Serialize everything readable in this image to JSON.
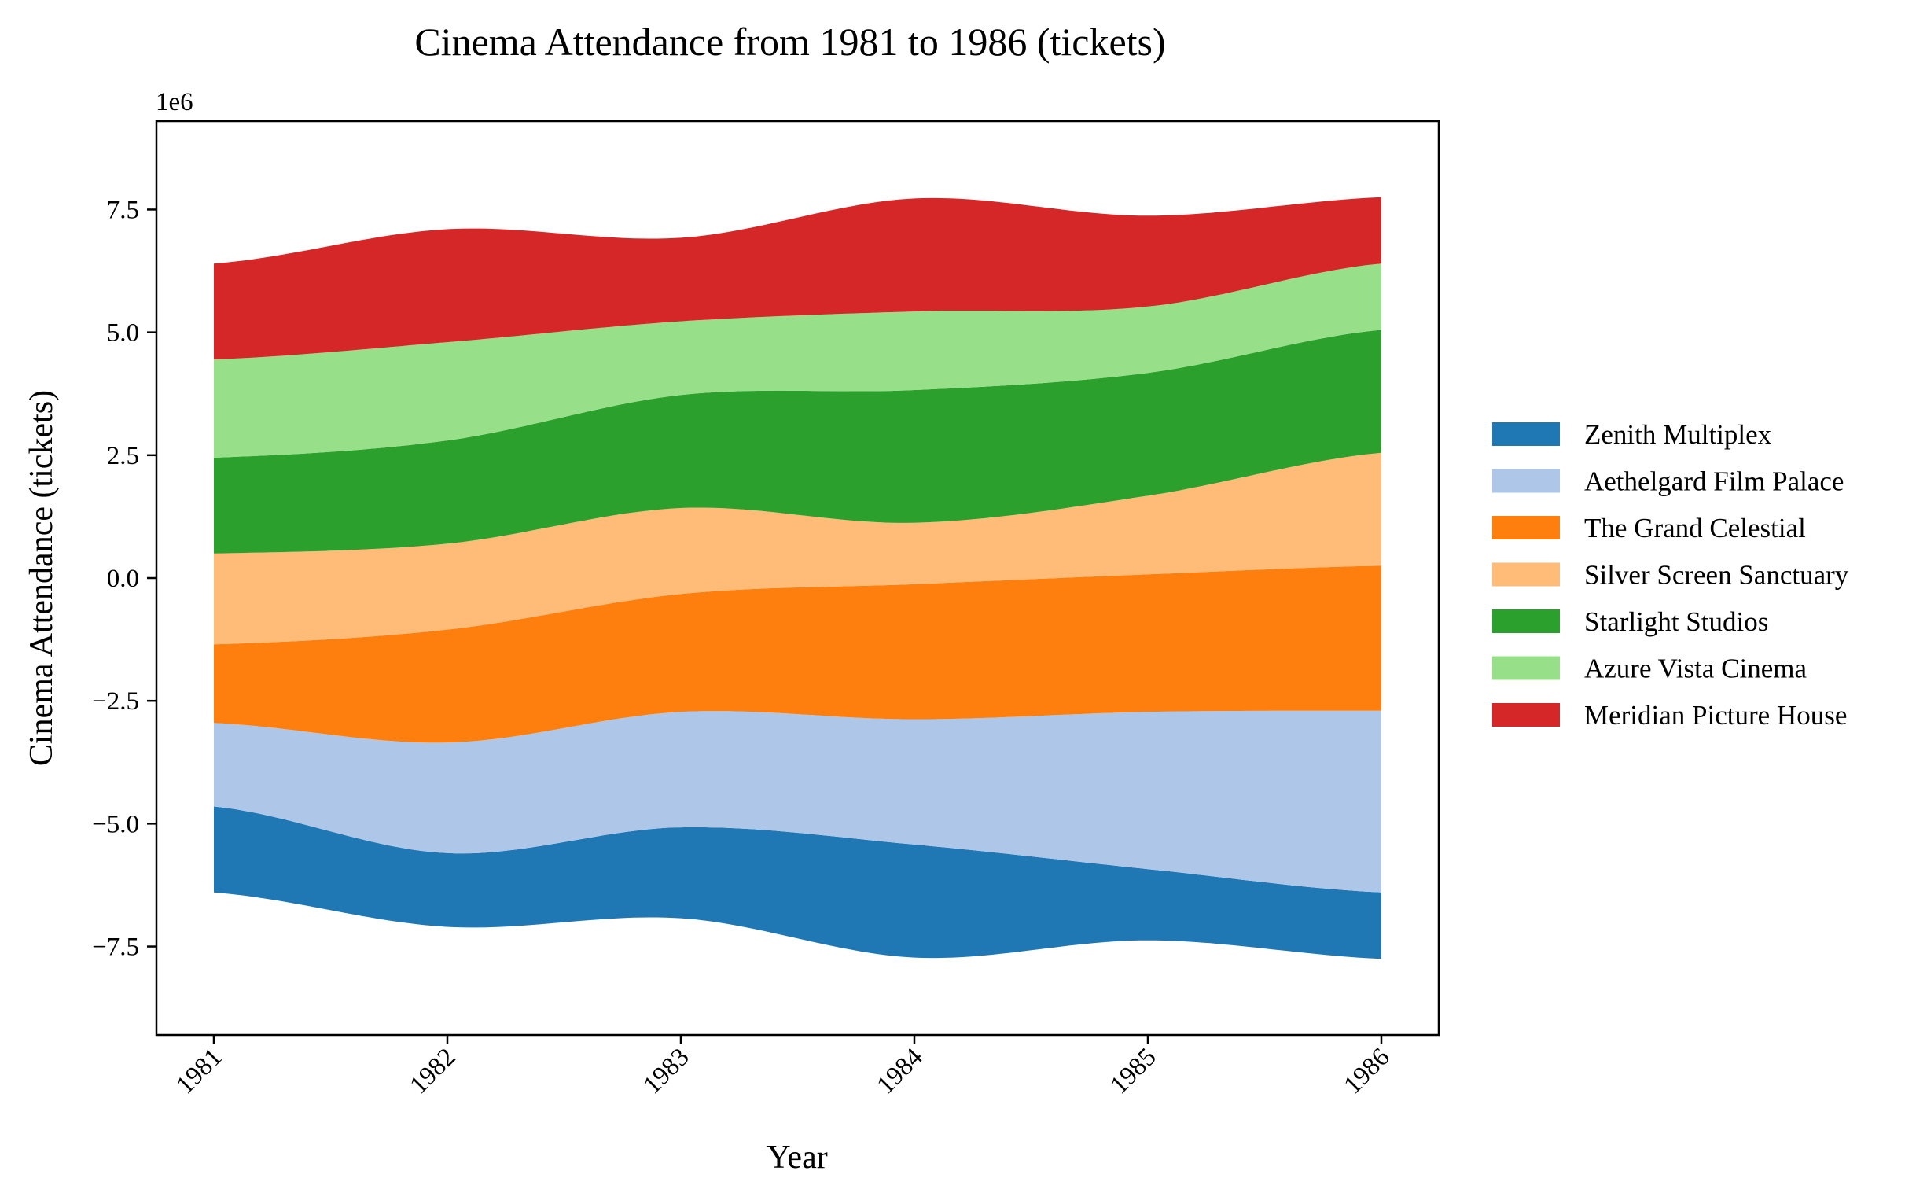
{
  "chart_data": {
    "type": "area",
    "baseline": "symmetric",
    "title": "Cinema Attendance from 1981 to 1986 (tickets)",
    "xlabel": "Year",
    "ylabel": "Cinema Attendance (tickets)",
    "y_offset_label": "1e6",
    "x": [
      "1981",
      "1982",
      "1983",
      "1984",
      "1985",
      "1986"
    ],
    "ylim": [
      -9300000,
      9300000
    ],
    "y_ticks": [
      -7500000,
      -5000000,
      -2500000,
      0,
      2500000,
      5000000,
      7500000
    ],
    "y_tick_labels": [
      "−7.5",
      "−5.0",
      "−2.5",
      "0.0",
      "2.5",
      "5.0",
      "7.5"
    ],
    "grid": false,
    "legend_position": "right",
    "series": [
      {
        "name": "Zenith Multiplex",
        "color": "#1f77b4",
        "values": [
          1750000,
          1500000,
          1850000,
          2300000,
          1450000,
          1350000
        ]
      },
      {
        "name": "Aethelgard Film Palace",
        "color": "#aec7e8",
        "values": [
          1700000,
          2250000,
          2350000,
          2550000,
          3200000,
          3700000
        ]
      },
      {
        "name": "The Grand Celestial",
        "color": "#ff7f0e",
        "values": [
          1600000,
          2300000,
          2400000,
          2750000,
          2800000,
          2950000
        ]
      },
      {
        "name": "Silver Screen Sanctuary",
        "color": "#ffbb78",
        "values": [
          1850000,
          1750000,
          1750000,
          1250000,
          1600000,
          2300000
        ]
      },
      {
        "name": "Starlight Studios",
        "color": "#2ca02c",
        "values": [
          1950000,
          2100000,
          2300000,
          2700000,
          2500000,
          2500000
        ]
      },
      {
        "name": "Azure Vista Cinema",
        "color": "#98df8a",
        "values": [
          2000000,
          2000000,
          1500000,
          1600000,
          1350000,
          1350000
        ]
      },
      {
        "name": "Meridian Picture House",
        "color": "#d62728",
        "values": [
          1950000,
          2300000,
          1700000,
          2300000,
          1850000,
          1350000
        ]
      }
    ]
  }
}
